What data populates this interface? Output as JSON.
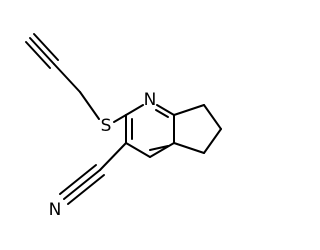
{
  "atoms": {
    "ring_nitrogen": "N",
    "sulfur": "S",
    "nitrile_nitrogen": "N"
  }
}
